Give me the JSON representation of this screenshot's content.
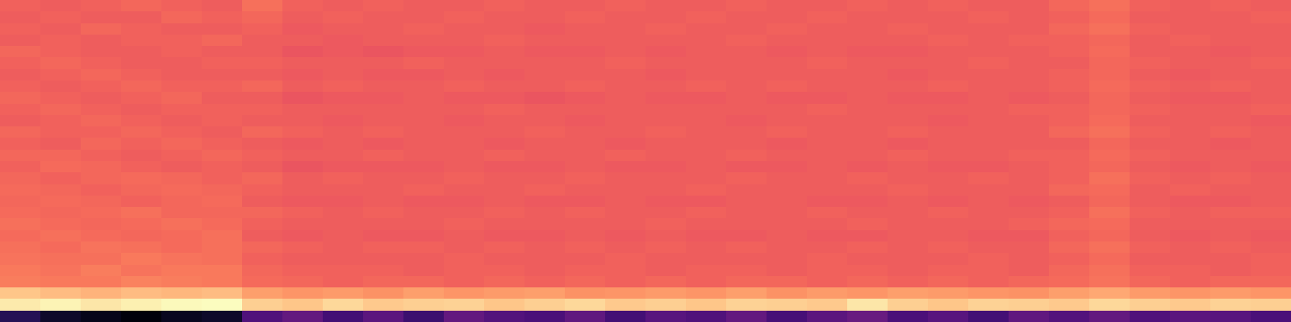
{
  "chart_data": {
    "type": "heatmap",
    "tick_labels": false,
    "zlim": [
      0,
      1
    ],
    "cells": [
      [
        0.67,
        0.66,
        0.67,
        0.68,
        0.67,
        0.66,
        0.7,
        0.67,
        0.66,
        0.67,
        0.66,
        0.66,
        0.67,
        0.66,
        0.66,
        0.67,
        0.66,
        0.66,
        0.67,
        0.66,
        0.66,
        0.67,
        0.66,
        0.67,
        0.66,
        0.66,
        0.68,
        0.7,
        0.67,
        0.66,
        0.67,
        0.66
      ],
      [
        0.66,
        0.67,
        0.66,
        0.66,
        0.68,
        0.67,
        0.68,
        0.66,
        0.67,
        0.66,
        0.66,
        0.67,
        0.66,
        0.66,
        0.67,
        0.66,
        0.66,
        0.67,
        0.66,
        0.66,
        0.67,
        0.66,
        0.66,
        0.66,
        0.67,
        0.66,
        0.67,
        0.69,
        0.66,
        0.66,
        0.66,
        0.67
      ],
      [
        0.67,
        0.66,
        0.68,
        0.67,
        0.66,
        0.66,
        0.67,
        0.65,
        0.66,
        0.66,
        0.67,
        0.66,
        0.66,
        0.65,
        0.66,
        0.66,
        0.67,
        0.66,
        0.66,
        0.67,
        0.66,
        0.66,
        0.67,
        0.66,
        0.66,
        0.66,
        0.68,
        0.7,
        0.67,
        0.66,
        0.66,
        0.66
      ],
      [
        0.66,
        0.67,
        0.66,
        0.67,
        0.67,
        0.68,
        0.66,
        0.66,
        0.65,
        0.66,
        0.66,
        0.66,
        0.67,
        0.66,
        0.66,
        0.66,
        0.66,
        0.66,
        0.67,
        0.66,
        0.66,
        0.66,
        0.66,
        0.67,
        0.66,
        0.67,
        0.67,
        0.68,
        0.66,
        0.67,
        0.66,
        0.66
      ],
      [
        0.68,
        0.67,
        0.66,
        0.66,
        0.67,
        0.66,
        0.66,
        0.64,
        0.65,
        0.64,
        0.65,
        0.65,
        0.66,
        0.65,
        0.65,
        0.66,
        0.65,
        0.66,
        0.66,
        0.65,
        0.66,
        0.65,
        0.65,
        0.66,
        0.66,
        0.66,
        0.67,
        0.69,
        0.66,
        0.66,
        0.65,
        0.66
      ],
      [
        0.67,
        0.68,
        0.67,
        0.66,
        0.66,
        0.67,
        0.67,
        0.66,
        0.66,
        0.66,
        0.67,
        0.66,
        0.66,
        0.66,
        0.66,
        0.67,
        0.66,
        0.66,
        0.66,
        0.66,
        0.67,
        0.66,
        0.66,
        0.66,
        0.67,
        0.66,
        0.66,
        0.68,
        0.67,
        0.66,
        0.66,
        0.67
      ],
      [
        0.66,
        0.67,
        0.68,
        0.67,
        0.66,
        0.66,
        0.66,
        0.65,
        0.66,
        0.65,
        0.65,
        0.66,
        0.65,
        0.66,
        0.66,
        0.66,
        0.65,
        0.66,
        0.66,
        0.66,
        0.66,
        0.66,
        0.65,
        0.66,
        0.66,
        0.66,
        0.67,
        0.68,
        0.66,
        0.65,
        0.66,
        0.66
      ],
      [
        0.67,
        0.66,
        0.67,
        0.68,
        0.67,
        0.67,
        0.68,
        0.66,
        0.67,
        0.66,
        0.66,
        0.67,
        0.66,
        0.66,
        0.67,
        0.66,
        0.66,
        0.67,
        0.66,
        0.67,
        0.66,
        0.66,
        0.66,
        0.67,
        0.66,
        0.66,
        0.67,
        0.69,
        0.67,
        0.66,
        0.67,
        0.66
      ],
      [
        0.68,
        0.67,
        0.66,
        0.67,
        0.68,
        0.66,
        0.66,
        0.64,
        0.65,
        0.65,
        0.66,
        0.65,
        0.65,
        0.64,
        0.65,
        0.66,
        0.65,
        0.65,
        0.66,
        0.65,
        0.65,
        0.66,
        0.65,
        0.65,
        0.66,
        0.65,
        0.66,
        0.68,
        0.66,
        0.65,
        0.65,
        0.66
      ],
      [
        0.67,
        0.68,
        0.67,
        0.66,
        0.67,
        0.67,
        0.67,
        0.66,
        0.66,
        0.66,
        0.66,
        0.66,
        0.67,
        0.66,
        0.66,
        0.66,
        0.66,
        0.66,
        0.66,
        0.66,
        0.67,
        0.66,
        0.66,
        0.66,
        0.66,
        0.67,
        0.67,
        0.68,
        0.67,
        0.66,
        0.66,
        0.67
      ],
      [
        0.66,
        0.67,
        0.68,
        0.67,
        0.66,
        0.67,
        0.66,
        0.66,
        0.65,
        0.66,
        0.66,
        0.65,
        0.66,
        0.66,
        0.65,
        0.66,
        0.66,
        0.66,
        0.65,
        0.66,
        0.66,
        0.66,
        0.66,
        0.65,
        0.66,
        0.66,
        0.67,
        0.69,
        0.66,
        0.66,
        0.66,
        0.65
      ],
      [
        0.68,
        0.67,
        0.67,
        0.68,
        0.67,
        0.66,
        0.68,
        0.67,
        0.66,
        0.67,
        0.66,
        0.66,
        0.66,
        0.67,
        0.66,
        0.66,
        0.67,
        0.66,
        0.66,
        0.67,
        0.66,
        0.66,
        0.67,
        0.66,
        0.66,
        0.66,
        0.68,
        0.7,
        0.67,
        0.66,
        0.67,
        0.66
      ],
      [
        0.67,
        0.66,
        0.68,
        0.67,
        0.68,
        0.67,
        0.66,
        0.65,
        0.66,
        0.65,
        0.66,
        0.66,
        0.65,
        0.66,
        0.66,
        0.65,
        0.66,
        0.66,
        0.66,
        0.65,
        0.66,
        0.66,
        0.65,
        0.66,
        0.66,
        0.66,
        0.66,
        0.68,
        0.66,
        0.66,
        0.65,
        0.66
      ],
      [
        0.68,
        0.68,
        0.67,
        0.66,
        0.67,
        0.68,
        0.67,
        0.66,
        0.66,
        0.67,
        0.66,
        0.66,
        0.67,
        0.66,
        0.66,
        0.67,
        0.66,
        0.66,
        0.67,
        0.66,
        0.66,
        0.66,
        0.67,
        0.66,
        0.66,
        0.67,
        0.67,
        0.69,
        0.67,
        0.66,
        0.66,
        0.66
      ],
      [
        0.67,
        0.69,
        0.68,
        0.67,
        0.66,
        0.67,
        0.66,
        0.64,
        0.65,
        0.65,
        0.65,
        0.66,
        0.65,
        0.65,
        0.66,
        0.65,
        0.65,
        0.66,
        0.65,
        0.65,
        0.66,
        0.65,
        0.66,
        0.65,
        0.65,
        0.66,
        0.67,
        0.68,
        0.66,
        0.65,
        0.66,
        0.65
      ],
      [
        0.68,
        0.67,
        0.68,
        0.69,
        0.68,
        0.67,
        0.68,
        0.66,
        0.67,
        0.66,
        0.66,
        0.67,
        0.66,
        0.66,
        0.67,
        0.66,
        0.66,
        0.66,
        0.67,
        0.66,
        0.66,
        0.67,
        0.66,
        0.66,
        0.67,
        0.66,
        0.67,
        0.7,
        0.67,
        0.66,
        0.67,
        0.66
      ],
      [
        0.69,
        0.68,
        0.67,
        0.68,
        0.69,
        0.68,
        0.67,
        0.66,
        0.66,
        0.66,
        0.67,
        0.66,
        0.66,
        0.67,
        0.66,
        0.66,
        0.66,
        0.67,
        0.66,
        0.66,
        0.66,
        0.66,
        0.67,
        0.66,
        0.66,
        0.66,
        0.68,
        0.69,
        0.66,
        0.67,
        0.66,
        0.66
      ],
      [
        0.68,
        0.69,
        0.68,
        0.67,
        0.68,
        0.69,
        0.66,
        0.65,
        0.65,
        0.66,
        0.65,
        0.65,
        0.66,
        0.65,
        0.65,
        0.66,
        0.65,
        0.65,
        0.66,
        0.66,
        0.65,
        0.65,
        0.66,
        0.65,
        0.66,
        0.65,
        0.66,
        0.68,
        0.66,
        0.65,
        0.65,
        0.66
      ],
      [
        0.69,
        0.68,
        0.69,
        0.7,
        0.68,
        0.68,
        0.68,
        0.67,
        0.66,
        0.67,
        0.66,
        0.66,
        0.67,
        0.66,
        0.67,
        0.66,
        0.66,
        0.67,
        0.66,
        0.66,
        0.67,
        0.66,
        0.66,
        0.67,
        0.66,
        0.66,
        0.67,
        0.7,
        0.67,
        0.66,
        0.67,
        0.67
      ],
      [
        0.7,
        0.69,
        0.68,
        0.69,
        0.7,
        0.69,
        0.67,
        0.66,
        0.66,
        0.66,
        0.66,
        0.67,
        0.66,
        0.66,
        0.66,
        0.66,
        0.67,
        0.66,
        0.66,
        0.66,
        0.66,
        0.67,
        0.66,
        0.66,
        0.66,
        0.67,
        0.68,
        0.69,
        0.66,
        0.66,
        0.66,
        0.66
      ],
      [
        0.69,
        0.7,
        0.69,
        0.68,
        0.69,
        0.7,
        0.66,
        0.65,
        0.66,
        0.65,
        0.65,
        0.66,
        0.65,
        0.65,
        0.66,
        0.65,
        0.66,
        0.65,
        0.65,
        0.66,
        0.65,
        0.65,
        0.66,
        0.66,
        0.65,
        0.65,
        0.67,
        0.68,
        0.66,
        0.65,
        0.66,
        0.65
      ],
      [
        0.7,
        0.69,
        0.71,
        0.7,
        0.69,
        0.7,
        0.68,
        0.67,
        0.66,
        0.67,
        0.67,
        0.66,
        0.67,
        0.66,
        0.67,
        0.66,
        0.67,
        0.66,
        0.67,
        0.66,
        0.66,
        0.67,
        0.66,
        0.67,
        0.66,
        0.66,
        0.68,
        0.7,
        0.67,
        0.66,
        0.67,
        0.66
      ],
      [
        0.71,
        0.7,
        0.7,
        0.72,
        0.71,
        0.7,
        0.67,
        0.66,
        0.66,
        0.66,
        0.66,
        0.67,
        0.66,
        0.66,
        0.66,
        0.67,
        0.66,
        0.66,
        0.66,
        0.66,
        0.67,
        0.66,
        0.66,
        0.66,
        0.67,
        0.66,
        0.67,
        0.69,
        0.66,
        0.66,
        0.66,
        0.67
      ],
      [
        0.72,
        0.71,
        0.73,
        0.71,
        0.72,
        0.72,
        0.68,
        0.67,
        0.67,
        0.67,
        0.66,
        0.67,
        0.67,
        0.66,
        0.67,
        0.67,
        0.66,
        0.67,
        0.67,
        0.66,
        0.67,
        0.67,
        0.66,
        0.67,
        0.67,
        0.66,
        0.68,
        0.7,
        0.67,
        0.67,
        0.66,
        0.67
      ],
      [
        0.73,
        0.72,
        0.72,
        0.74,
        0.73,
        0.72,
        0.69,
        0.68,
        0.67,
        0.68,
        0.68,
        0.67,
        0.68,
        0.67,
        0.68,
        0.67,
        0.68,
        0.67,
        0.68,
        0.68,
        0.67,
        0.68,
        0.67,
        0.68,
        0.67,
        0.68,
        0.69,
        0.71,
        0.68,
        0.67,
        0.68,
        0.68
      ],
      [
        0.88,
        0.86,
        0.84,
        0.86,
        0.85,
        0.86,
        0.8,
        0.78,
        0.79,
        0.77,
        0.8,
        0.78,
        0.79,
        0.8,
        0.77,
        0.78,
        0.79,
        0.78,
        0.8,
        0.77,
        0.79,
        0.78,
        0.8,
        0.79,
        0.78,
        0.77,
        0.8,
        0.82,
        0.79,
        0.78,
        0.79,
        0.78
      ],
      [
        0.96,
        0.98,
        0.95,
        0.97,
        0.99,
        1.0,
        0.9,
        0.88,
        0.92,
        0.89,
        0.9,
        0.91,
        0.88,
        0.9,
        0.92,
        0.89,
        0.9,
        0.88,
        0.91,
        0.9,
        0.89,
        0.95,
        0.9,
        0.88,
        0.91,
        0.9,
        0.89,
        0.92,
        0.9,
        0.89,
        0.91,
        0.9
      ],
      [
        0.15,
        0.08,
        0.05,
        0.02,
        0.06,
        0.08,
        0.25,
        0.3,
        0.22,
        0.28,
        0.2,
        0.3,
        0.26,
        0.24,
        0.29,
        0.22,
        0.27,
        0.25,
        0.3,
        0.23,
        0.28,
        0.31,
        0.24,
        0.27,
        0.22,
        0.29,
        0.26,
        0.3,
        0.25,
        0.28,
        0.27,
        0.24
      ]
    ]
  }
}
